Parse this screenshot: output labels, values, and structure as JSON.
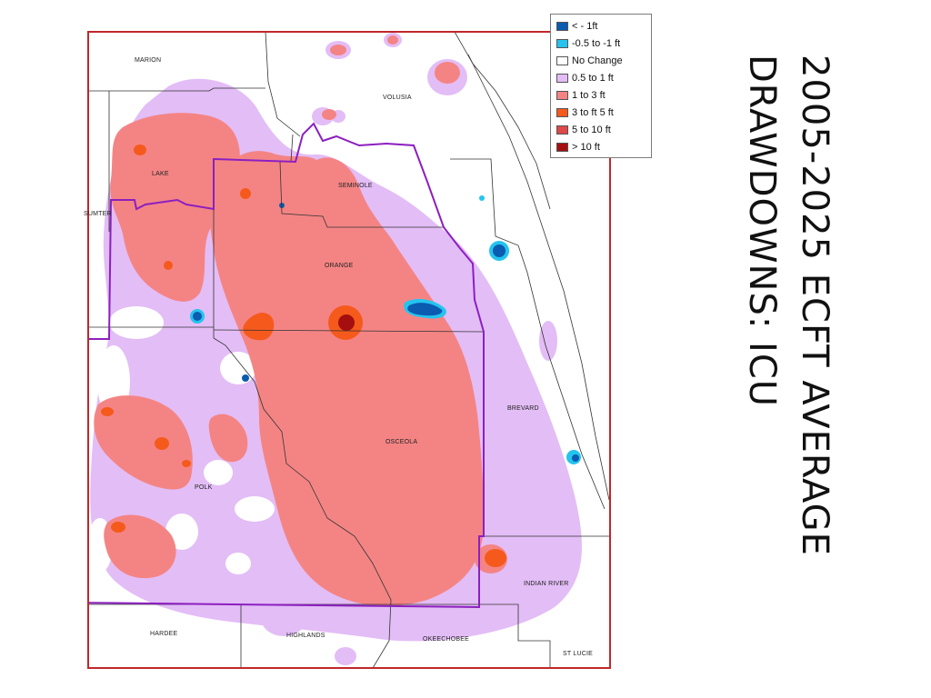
{
  "title": {
    "line1": "2005-2025 ECFT AVERAGE",
    "line2": "DRAWDOWNS: ICU"
  },
  "legend": [
    {
      "label": "< - 1ft",
      "color": "#0b5bb0",
      "icon": "swatch-dark-blue"
    },
    {
      "label": "-0.5 to -1 ft",
      "color": "#24c4ee",
      "icon": "swatch-light-blue"
    },
    {
      "label": "No Change",
      "color": "#ffffff",
      "icon": "swatch-white"
    },
    {
      "label": "0.5 to 1 ft",
      "color": "#e3bdf6",
      "icon": "swatch-lavender"
    },
    {
      "label": "1 to 3 ft",
      "color": "#f48484",
      "icon": "swatch-salmon"
    },
    {
      "label": "3 to ft 5 ft",
      "color": "#f55a1c",
      "icon": "swatch-orange"
    },
    {
      "label": "5 to 10 ft",
      "color": "#de4848",
      "icon": "swatch-red"
    },
    {
      "label": "> 10 ft",
      "color": "#a60f0f",
      "icon": "swatch-dark-red"
    }
  ],
  "counties": {
    "marion": "MARION",
    "volusia": "VOLUSIA",
    "lake": "LAKE",
    "sumter": "SUMTER",
    "seminole": "SEMINOLE",
    "orange": "ORANGE",
    "brevard": "BREVARD",
    "osceola": "OSCEOLA",
    "polk": "POLK",
    "indian_river": "INDIAN RIVER",
    "hardee": "HARDEE",
    "highlands": "HIGHLANDS",
    "okeechobee": "OKEECHOBEE",
    "st_lucie": "ST LUCIE"
  },
  "colors": {
    "frame": "#c0282b",
    "boundary": "#8c1fc0",
    "county_lines": "#333333"
  }
}
